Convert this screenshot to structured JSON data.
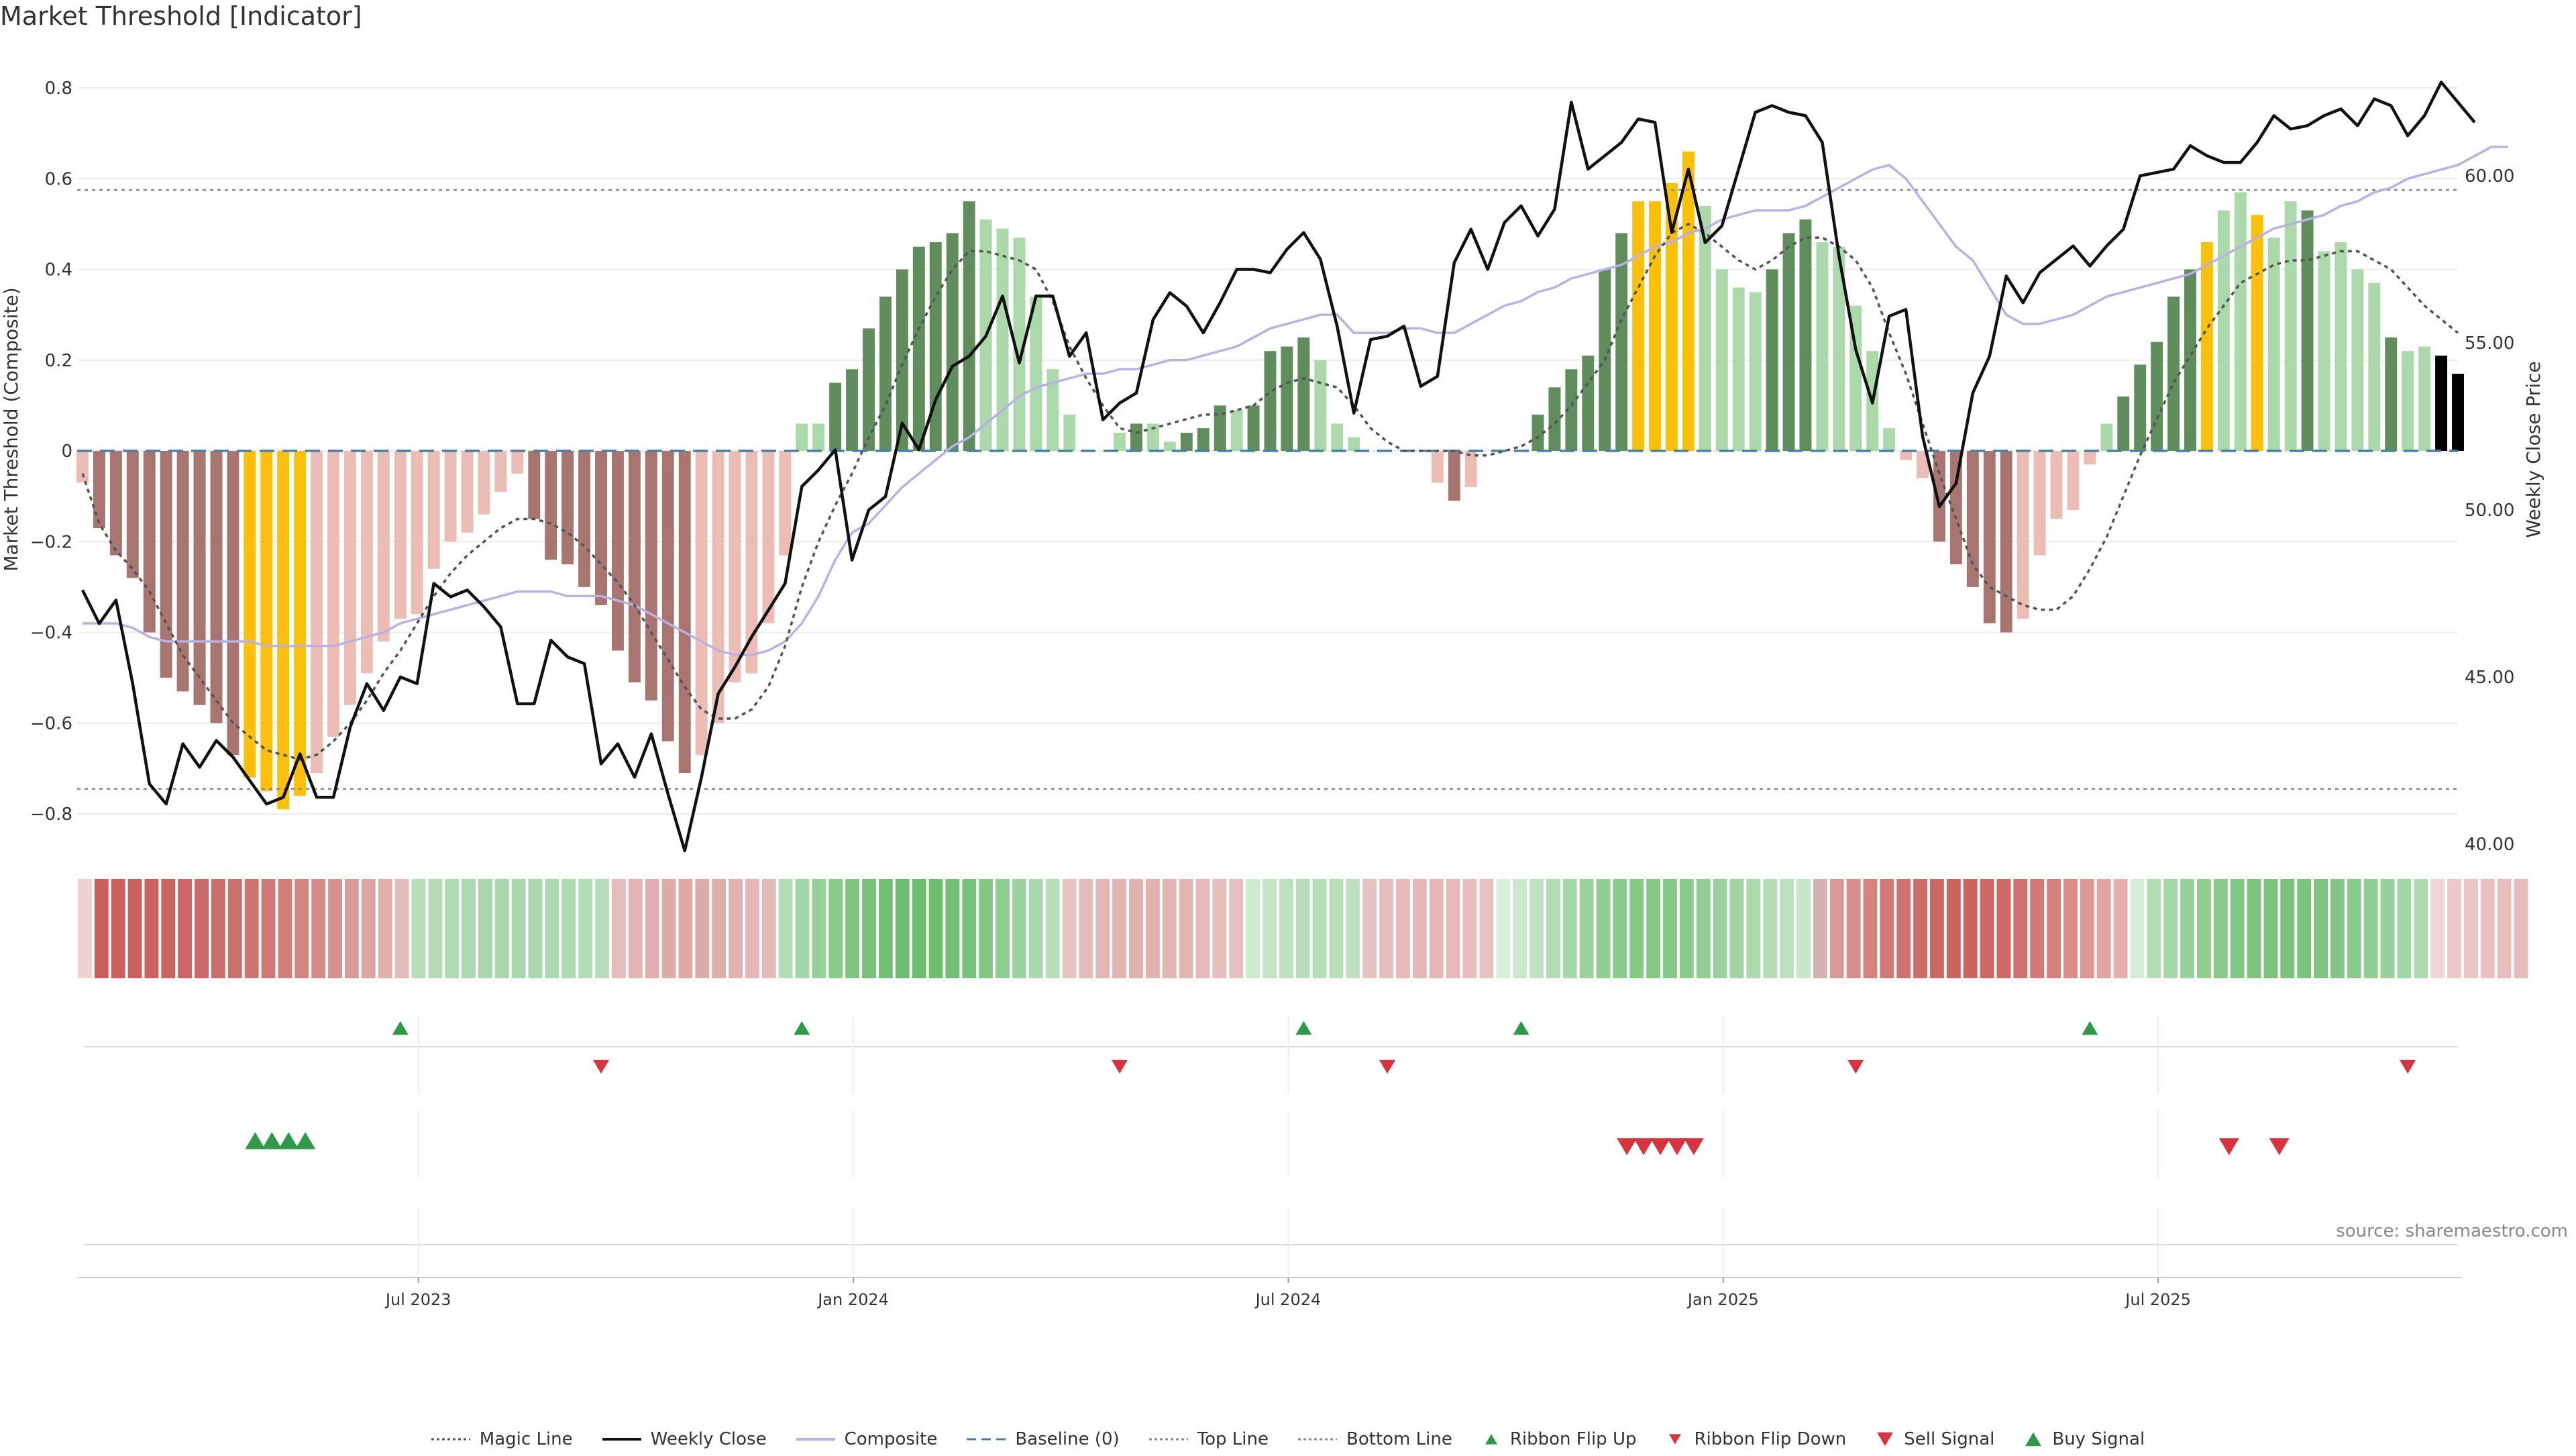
{
  "chart_data": {
    "type": "bar",
    "title": "Market Threshold [Indicator]",
    "ylabel": "Market Threshold (Composite)",
    "ylabel_right": "Weekly Close Price",
    "ylim": [
      -0.88,
      0.9
    ],
    "ylim_right": [
      39.4,
      63.5
    ],
    "yticks": [
      "0.8",
      "0.6",
      "0.4",
      "0.2",
      "0",
      "−0.2",
      "−0.4",
      "−0.6",
      "−0.8"
    ],
    "yticks_right": [
      "60.00",
      "55.00",
      "50.00",
      "45.00",
      "40.00"
    ],
    "x_ticks": [
      "Jul 2023",
      "Jan 2024",
      "Jul 2024",
      "Jan 2025",
      "Jul 2025"
    ],
    "x_tick_weeks": [
      20,
      46,
      72,
      98,
      124
    ],
    "week_count": 143,
    "top_line": 0.575,
    "bottom_line": -0.745,
    "baseline": 0,
    "colors": {
      "strong_neg": "#a87570",
      "weak_neg": "#ecbdb5",
      "strong_pos": "#5f8e5c",
      "weak_pos": "#acd9aa",
      "extreme": "#fbc10a",
      "weekly_close": "#111111",
      "composite": "#b9b0e6",
      "magic": "#555555",
      "baseline": "#4a7fa8",
      "ribbon_up": "#2e9a47",
      "ribbon_down": "#d9343d"
    },
    "composite_bars": [
      -0.07,
      -0.17,
      -0.23,
      -0.28,
      -0.4,
      -0.5,
      -0.53,
      -0.56,
      -0.6,
      -0.67,
      -0.72,
      -0.75,
      -0.79,
      -0.76,
      -0.71,
      -0.63,
      -0.56,
      -0.49,
      -0.42,
      -0.37,
      -0.36,
      -0.26,
      -0.2,
      -0.18,
      -0.14,
      -0.09,
      -0.05,
      -0.15,
      -0.24,
      -0.25,
      -0.3,
      -0.34,
      -0.44,
      -0.51,
      -0.55,
      -0.64,
      -0.71,
      -0.67,
      -0.6,
      -0.51,
      -0.49,
      -0.38,
      -0.23,
      0.06,
      0.06,
      0.15,
      0.18,
      0.27,
      0.34,
      0.4,
      0.45,
      0.46,
      0.48,
      0.55,
      0.51,
      0.49,
      0.47,
      0.34,
      0.18,
      0.08,
      0.0,
      0.0,
      0.04,
      0.06,
      0.06,
      0.02,
      0.04,
      0.05,
      0.1,
      0.09,
      0.1,
      0.22,
      0.23,
      0.25,
      0.2,
      0.06,
      0.03,
      0.0,
      0.0,
      0.0,
      0.0,
      -0.07,
      -0.11,
      -0.08,
      0.0,
      0.0,
      0.0,
      0.08,
      0.14,
      0.18,
      0.21,
      0.4,
      0.48,
      0.55,
      0.55,
      0.59,
      0.66,
      0.54,
      0.4,
      0.36,
      0.35,
      0.4,
      0.48,
      0.51,
      0.46,
      0.45,
      0.32,
      0.22,
      0.05,
      -0.02,
      -0.06,
      -0.2,
      -0.25,
      -0.3,
      -0.38,
      -0.4,
      -0.37,
      -0.23,
      -0.15,
      -0.13,
      -0.03,
      0.06,
      0.12,
      0.19,
      0.24,
      0.34,
      0.4,
      0.46,
      0.53,
      0.57,
      0.52,
      0.47,
      0.55,
      0.53,
      0.44,
      0.46,
      0.4,
      0.37,
      0.25,
      0.22,
      0.23,
      0.21,
      0.17
    ],
    "bar_classes": [
      "wn",
      "sn",
      "sn",
      "sn",
      "sn",
      "sn",
      "sn",
      "sn",
      "sn",
      "sn",
      "ex",
      "ex",
      "ex",
      "ex",
      "wn",
      "wn",
      "wn",
      "wn",
      "wn",
      "wn",
      "wn",
      "wn",
      "wn",
      "wn",
      "wn",
      "wn",
      "wn",
      "sn",
      "sn",
      "sn",
      "sn",
      "sn",
      "sn",
      "sn",
      "sn",
      "sn",
      "sn",
      "wn",
      "wn",
      "wn",
      "wn",
      "wn",
      "wn",
      "wp",
      "wp",
      "sp",
      "sp",
      "sp",
      "sp",
      "sp",
      "sp",
      "sp",
      "sp",
      "sp",
      "wp",
      "wp",
      "wp",
      "wp",
      "wp",
      "wp",
      "wp",
      "wp",
      "wp",
      "sp",
      "wp",
      "wp",
      "sp",
      "sp",
      "sp",
      "wp",
      "sp",
      "sp",
      "sp",
      "sp",
      "wp",
      "wp",
      "wp",
      "wp",
      "wp",
      "wp",
      "wp",
      "wn",
      "sn",
      "wn",
      "wp",
      "wp",
      "wp",
      "sp",
      "sp",
      "sp",
      "sp",
      "sp",
      "sp",
      "ex",
      "ex",
      "ex",
      "ex",
      "wp",
      "wp",
      "wp",
      "wp",
      "sp",
      "sp",
      "sp",
      "wp",
      "wp",
      "wp",
      "wp",
      "wp",
      "wn",
      "wn",
      "sn",
      "sn",
      "sn",
      "sn",
      "sn",
      "wn",
      "wn",
      "wn",
      "wn",
      "wn",
      "wp",
      "sp",
      "sp",
      "sp",
      "sp",
      "sp",
      "ex",
      "wp",
      "wp",
      "ex",
      "wp",
      "wp",
      "sp",
      "wp",
      "wp",
      "wp",
      "wp",
      "sp",
      "wp",
      "wp"
    ],
    "weekly_close": [
      47.6,
      46.6,
      47.3,
      44.8,
      41.8,
      41.2,
      43.0,
      42.3,
      43.1,
      42.6,
      41.9,
      41.2,
      41.4,
      42.7,
      41.4,
      41.4,
      43.5,
      44.8,
      44.0,
      45.0,
      44.8,
      47.8,
      47.4,
      47.6,
      47.1,
      46.5,
      44.2,
      44.2,
      46.1,
      45.6,
      45.4,
      42.4,
      43.0,
      42.0,
      43.3,
      41.5,
      39.8,
      42.0,
      44.5,
      45.3,
      46.2,
      47.0,
      47.8,
      50.7,
      51.2,
      51.8,
      48.5,
      50.0,
      50.4,
      52.6,
      51.8,
      53.3,
      54.3,
      54.6,
      55.2,
      56.4,
      54.4,
      56.4,
      56.4,
      54.6,
      55.3,
      52.7,
      53.2,
      53.5,
      55.7,
      56.5,
      56.1,
      55.3,
      56.2,
      57.2,
      57.2,
      57.1,
      57.8,
      58.3,
      57.5,
      55.5,
      52.9,
      55.1,
      55.2,
      55.5,
      53.7,
      54.0,
      57.4,
      58.4,
      57.2,
      58.6,
      59.1,
      58.2,
      59.0,
      62.2,
      60.2,
      60.6,
      61.0,
      61.7,
      61.6,
      58.3,
      60.2,
      58.0,
      58.5,
      60.2,
      61.9,
      62.1,
      61.9,
      61.8,
      61.0,
      57.6,
      54.8,
      53.2,
      55.8,
      56.0,
      52.2,
      50.1,
      50.8,
      53.5,
      54.6,
      57.0,
      56.2,
      57.1,
      57.5,
      57.9,
      57.3,
      57.9,
      58.4,
      60.0,
      60.1,
      60.2,
      60.9,
      60.6,
      60.4,
      60.4,
      61.0,
      61.8,
      61.4,
      61.5,
      61.8,
      62.0,
      61.5,
      62.3,
      62.1,
      61.2,
      61.8,
      62.8,
      62.2,
      61.6
    ],
    "composite_line": [
      -0.38,
      -0.38,
      -0.38,
      -0.39,
      -0.41,
      -0.42,
      -0.42,
      -0.42,
      -0.42,
      -0.42,
      -0.42,
      -0.43,
      -0.43,
      -0.43,
      -0.43,
      -0.43,
      -0.42,
      -0.41,
      -0.4,
      -0.38,
      -0.37,
      -0.36,
      -0.35,
      -0.34,
      -0.33,
      -0.32,
      -0.31,
      -0.31,
      -0.31,
      -0.32,
      -0.32,
      -0.32,
      -0.33,
      -0.34,
      -0.36,
      -0.38,
      -0.4,
      -0.42,
      -0.44,
      -0.45,
      -0.45,
      -0.44,
      -0.42,
      -0.38,
      -0.32,
      -0.24,
      -0.18,
      -0.16,
      -0.12,
      -0.08,
      -0.05,
      -0.02,
      0.01,
      0.03,
      0.06,
      0.09,
      0.12,
      0.14,
      0.15,
      0.16,
      0.17,
      0.17,
      0.18,
      0.18,
      0.19,
      0.2,
      0.2,
      0.21,
      0.22,
      0.23,
      0.25,
      0.27,
      0.28,
      0.29,
      0.3,
      0.3,
      0.26,
      0.26,
      0.26,
      0.27,
      0.27,
      0.26,
      0.26,
      0.28,
      0.3,
      0.32,
      0.33,
      0.35,
      0.36,
      0.38,
      0.39,
      0.4,
      0.41,
      0.43,
      0.45,
      0.46,
      0.48,
      0.49,
      0.51,
      0.52,
      0.53,
      0.53,
      0.53,
      0.54,
      0.56,
      0.58,
      0.6,
      0.62,
      0.63,
      0.6,
      0.55,
      0.5,
      0.45,
      0.42,
      0.36,
      0.3,
      0.28,
      0.28,
      0.29,
      0.3,
      0.32,
      0.34,
      0.35,
      0.36,
      0.37,
      0.38,
      0.39,
      0.41,
      0.43,
      0.45,
      0.47,
      0.49,
      0.5,
      0.51,
      0.52,
      0.54,
      0.55,
      0.57,
      0.58,
      0.6,
      0.61,
      0.62,
      0.63,
      0.65,
      0.67,
      0.67
    ],
    "magic_line": [
      -0.05,
      -0.16,
      -0.22,
      -0.26,
      -0.31,
      -0.38,
      -0.45,
      -0.5,
      -0.55,
      -0.6,
      -0.63,
      -0.66,
      -0.67,
      -0.68,
      -0.67,
      -0.64,
      -0.6,
      -0.55,
      -0.49,
      -0.44,
      -0.38,
      -0.32,
      -0.27,
      -0.23,
      -0.2,
      -0.17,
      -0.15,
      -0.15,
      -0.16,
      -0.18,
      -0.21,
      -0.25,
      -0.29,
      -0.34,
      -0.4,
      -0.46,
      -0.52,
      -0.57,
      -0.59,
      -0.59,
      -0.57,
      -0.52,
      -0.43,
      -0.3,
      -0.2,
      -0.12,
      -0.05,
      0.03,
      0.1,
      0.19,
      0.27,
      0.34,
      0.4,
      0.44,
      0.44,
      0.43,
      0.42,
      0.4,
      0.33,
      0.23,
      0.16,
      0.1,
      0.05,
      0.04,
      0.05,
      0.06,
      0.07,
      0.08,
      0.08,
      0.09,
      0.1,
      0.13,
      0.15,
      0.16,
      0.15,
      0.14,
      0.1,
      0.05,
      0.02,
      0.0,
      0.0,
      0.0,
      0.0,
      -0.01,
      -0.01,
      0.0,
      0.01,
      0.03,
      0.06,
      0.1,
      0.15,
      0.2,
      0.29,
      0.36,
      0.43,
      0.48,
      0.5,
      0.48,
      0.45,
      0.42,
      0.4,
      0.42,
      0.45,
      0.47,
      0.47,
      0.45,
      0.42,
      0.36,
      0.26,
      0.17,
      0.06,
      -0.05,
      -0.15,
      -0.25,
      -0.3,
      -0.32,
      -0.34,
      -0.35,
      -0.35,
      -0.32,
      -0.26,
      -0.19,
      -0.1,
      -0.01,
      0.07,
      0.15,
      0.21,
      0.27,
      0.32,
      0.37,
      0.39,
      0.41,
      0.42,
      0.42,
      0.43,
      0.44,
      0.44,
      0.42,
      0.4,
      0.36,
      0.32,
      0.29,
      0.26
    ],
    "ribbon_cell_colors": [
      "#f0d2d1",
      "#c95f5b",
      "#c9615d",
      "#c9625e",
      "#ca635f",
      "#ca6561",
      "#cb6763",
      "#cb6a66",
      "#cc6d69",
      "#cd716d",
      "#ce7571",
      "#cf7a76",
      "#d17f7b",
      "#d38581",
      "#d58b87",
      "#d79290",
      "#da9b98",
      "#dea4a2",
      "#e1aeac",
      "#e5b9b7",
      "#b7dfb9",
      "#b3ddb5",
      "#afdbb2",
      "#acdaaf",
      "#a9d8ac",
      "#a8d8ab",
      "#a8d8ab",
      "#a9d8ac",
      "#abd9ad",
      "#aedaaf",
      "#b2dcb3",
      "#b6deb8",
      "#e6bcbb",
      "#e2b4b2",
      "#e0afad",
      "#deaba9",
      "#ddaaa8",
      "#ddabaa",
      "#deaeac",
      "#e0b2b0",
      "#e2b7b5",
      "#e5bbba",
      "#b2dcb3",
      "#a3d6a5",
      "#95d097",
      "#89cb8b",
      "#7ec580",
      "#76c278",
      "#70bf72",
      "#6dbd6f",
      "#6cbd6e",
      "#6ebe70",
      "#72c074",
      "#78c37b",
      "#82c784",
      "#8fcd91",
      "#9cd29e",
      "#a9d8ac",
      "#b7dfb9",
      "#e8c3c2",
      "#e5bcba",
      "#e3b7b5",
      "#e2b4b2",
      "#e1b2b0",
      "#e1b2b0",
      "#e2b4b2",
      "#e3b6b4",
      "#e5b9b7",
      "#e6bdbb",
      "#e8c0bf",
      "#cde9ce",
      "#c4e5c5",
      "#bde1be",
      "#b8dfb9",
      "#b6deb8",
      "#b8dfb9",
      "#bde1be",
      "#e8c2c1",
      "#e6bdbb",
      "#e5bab8",
      "#e4b8b6",
      "#e4b8b6",
      "#e5bab8",
      "#e7bebc",
      "#e9c4c3",
      "#d8eed9",
      "#cbe7cc",
      "#bfe2c0",
      "#b2dcb3",
      "#a5d7a7",
      "#9ad29c",
      "#90ce92",
      "#89cb8b",
      "#85c987",
      "#84c886",
      "#86c988",
      "#8acb8c",
      "#90ce92",
      "#98d29a",
      "#a1d5a3",
      "#aad9ac",
      "#b4ddb6",
      "#bee1c0",
      "#c8e5c9",
      "#d2b1b0",
      "#d89a97",
      "#d68f8c",
      "#d4847f",
      "#d27b76",
      "#d0736e",
      "#ce6c67",
      "#cd6763",
      "#cc6560",
      "#cc6560",
      "#cd6763",
      "#ce6b67",
      "#d0716d",
      "#d37975",
      "#d6827e",
      "#da8c89",
      "#de9794",
      "#e2a3a1",
      "#e6aeac",
      "#d7edd8",
      "#b2dcb3",
      "#a5d7a7",
      "#99d19b",
      "#8fcd91",
      "#87ca89",
      "#81c783",
      "#7dc57f",
      "#7ac47c",
      "#79c37b",
      "#7ac47c",
      "#7dc57f",
      "#82c784",
      "#88ca8a",
      "#90ce92",
      "#99d19b",
      "#a3d6a5",
      "#aedaaf",
      "#f0d5d4",
      "#edc9c8",
      "#ebc4c3",
      "#e9c0bf",
      "#e8bebd",
      "#e7bbba"
    ],
    "ribbon_flip_up_weeks": [
      19,
      43,
      73,
      86,
      120
    ],
    "ribbon_flip_down_weeks": [
      31,
      62,
      78,
      106,
      139
    ],
    "buy_signal_weeks": [
      10,
      11,
      12,
      13
    ],
    "sell_signal_weeks": [
      92,
      93,
      94,
      95,
      96,
      128,
      131
    ],
    "legend": [
      {
        "label": "Magic Line",
        "kind": "dotted",
        "color": "#555555"
      },
      {
        "label": "Weekly Close",
        "kind": "solid",
        "color": "#111111"
      },
      {
        "label": "Composite",
        "kind": "solid",
        "color": "#b9b0e6"
      },
      {
        "label": "Baseline (0)",
        "kind": "dashed",
        "color": "#4a7fa8"
      },
      {
        "label": "Top Line",
        "kind": "dotted",
        "color": "#888888"
      },
      {
        "label": "Bottom Line",
        "kind": "dotted",
        "color": "#888888"
      },
      {
        "label": "Ribbon Flip Up",
        "kind": "tri-up-small",
        "color": "#2e9a47"
      },
      {
        "label": "Ribbon Flip Down",
        "kind": "tri-down-small",
        "color": "#d9343d"
      },
      {
        "label": "Sell Signal",
        "kind": "tri-down",
        "color": "#d9343d"
      },
      {
        "label": "Buy Signal",
        "kind": "tri-up",
        "color": "#2e9a47"
      }
    ]
  },
  "source_note": "source: sharemaestro.com"
}
